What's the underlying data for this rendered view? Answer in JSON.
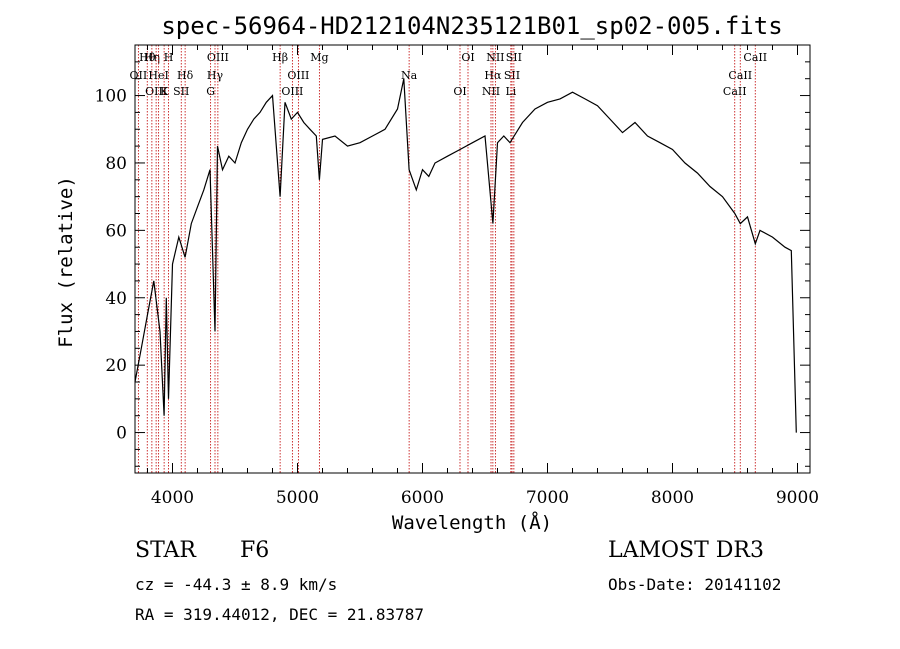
{
  "chart_data": {
    "type": "line",
    "title": "spec-56964-HD212104N235121B01_sp02-005.fits",
    "xlabel": "Wavelength (Å)",
    "ylabel": "Flux (relative)",
    "xlim": [
      3700,
      9100
    ],
    "ylim": [
      -12,
      115
    ],
    "xticks": [
      4000,
      5000,
      6000,
      7000,
      8000,
      9000
    ],
    "xtick_labels": [
      "4000",
      "5000",
      "6000",
      "7000",
      "8000",
      "9000"
    ],
    "yticks": [
      0,
      20,
      40,
      60,
      80,
      100
    ],
    "ytick_labels": [
      "0",
      "20",
      "40",
      "60",
      "80",
      "100"
    ],
    "series": [
      {
        "name": "flux",
        "x": [
          3700,
          3750,
          3800,
          3850,
          3900,
          3933,
          3950,
          3968,
          4000,
          4050,
          4101,
          4150,
          4200,
          4250,
          4300,
          4340,
          4360,
          4400,
          4450,
          4500,
          4550,
          4600,
          4650,
          4700,
          4750,
          4800,
          4861,
          4900,
          4950,
          5000,
          5050,
          5100,
          5150,
          5175,
          5200,
          5300,
          5400,
          5500,
          5600,
          5700,
          5800,
          5850,
          5893,
          5950,
          6000,
          6050,
          6100,
          6200,
          6300,
          6400,
          6500,
          6563,
          6600,
          6650,
          6700,
          6800,
          6900,
          7000,
          7100,
          7200,
          7300,
          7400,
          7500,
          7600,
          7700,
          7800,
          7900,
          8000,
          8100,
          8200,
          8300,
          8400,
          8498,
          8542,
          8600,
          8662,
          8700,
          8800,
          8900,
          8950,
          8990
        ],
        "y": [
          15,
          25,
          35,
          45,
          30,
          5,
          40,
          10,
          50,
          58,
          52,
          62,
          67,
          72,
          78,
          30,
          85,
          78,
          82,
          80,
          86,
          90,
          93,
          95,
          98,
          100,
          70,
          98,
          93,
          95,
          92,
          90,
          88,
          75,
          87,
          88,
          85,
          86,
          88,
          90,
          96,
          105,
          78,
          72,
          78,
          76,
          80,
          82,
          84,
          86,
          88,
          62,
          86,
          88,
          86,
          92,
          96,
          98,
          99,
          101,
          99,
          97,
          93,
          89,
          92,
          88,
          86,
          84,
          80,
          77,
          73,
          70,
          65,
          62,
          64,
          56,
          60,
          58,
          55,
          54,
          0
        ]
      }
    ],
    "line_annotations": [
      {
        "label": "Hθ",
        "x": 3798
      },
      {
        "label": "OII",
        "x": 3727
      },
      {
        "label": "OIII",
        "x": 3869
      },
      {
        "label": "Hη",
        "x": 3835
      },
      {
        "label": "HeI",
        "x": 3889
      },
      {
        "label": "K",
        "x": 3933
      },
      {
        "label": "H",
        "x": 3968
      },
      {
        "label": "Hδ",
        "x": 4101
      },
      {
        "label": "SII",
        "x": 4070
      },
      {
        "label": "OIII",
        "x": 4363
      },
      {
        "label": "Hγ",
        "x": 4340
      },
      {
        "label": "G",
        "x": 4305
      },
      {
        "label": "Hβ",
        "x": 4861
      },
      {
        "label": "OIII",
        "x": 5007
      },
      {
        "label": "OIII",
        "x": 4959
      },
      {
        "label": "Mg",
        "x": 5175
      },
      {
        "label": "Na",
        "x": 5893
      },
      {
        "label": "OI",
        "x": 6300
      },
      {
        "label": "OI",
        "x": 6364
      },
      {
        "label": "Hα",
        "x": 6563
      },
      {
        "label": "NII",
        "x": 6548
      },
      {
        "label": "NII",
        "x": 6583
      },
      {
        "label": "SII",
        "x": 6716
      },
      {
        "label": "Li",
        "x": 6707
      },
      {
        "label": "SII",
        "x": 6731
      },
      {
        "label": "CaII",
        "x": 8542
      },
      {
        "label": "CaII",
        "x": 8498
      },
      {
        "label": "CaII",
        "x": 8662
      }
    ]
  },
  "info": {
    "object_class": "STAR",
    "subclass": "F6",
    "survey": "LAMOST DR3",
    "cz": "cz = -44.3 ± 8.9 km/s",
    "obs_date": "Obs-Date: 20141102",
    "radec": "RA = 319.44012, DEC =  21.83787"
  }
}
